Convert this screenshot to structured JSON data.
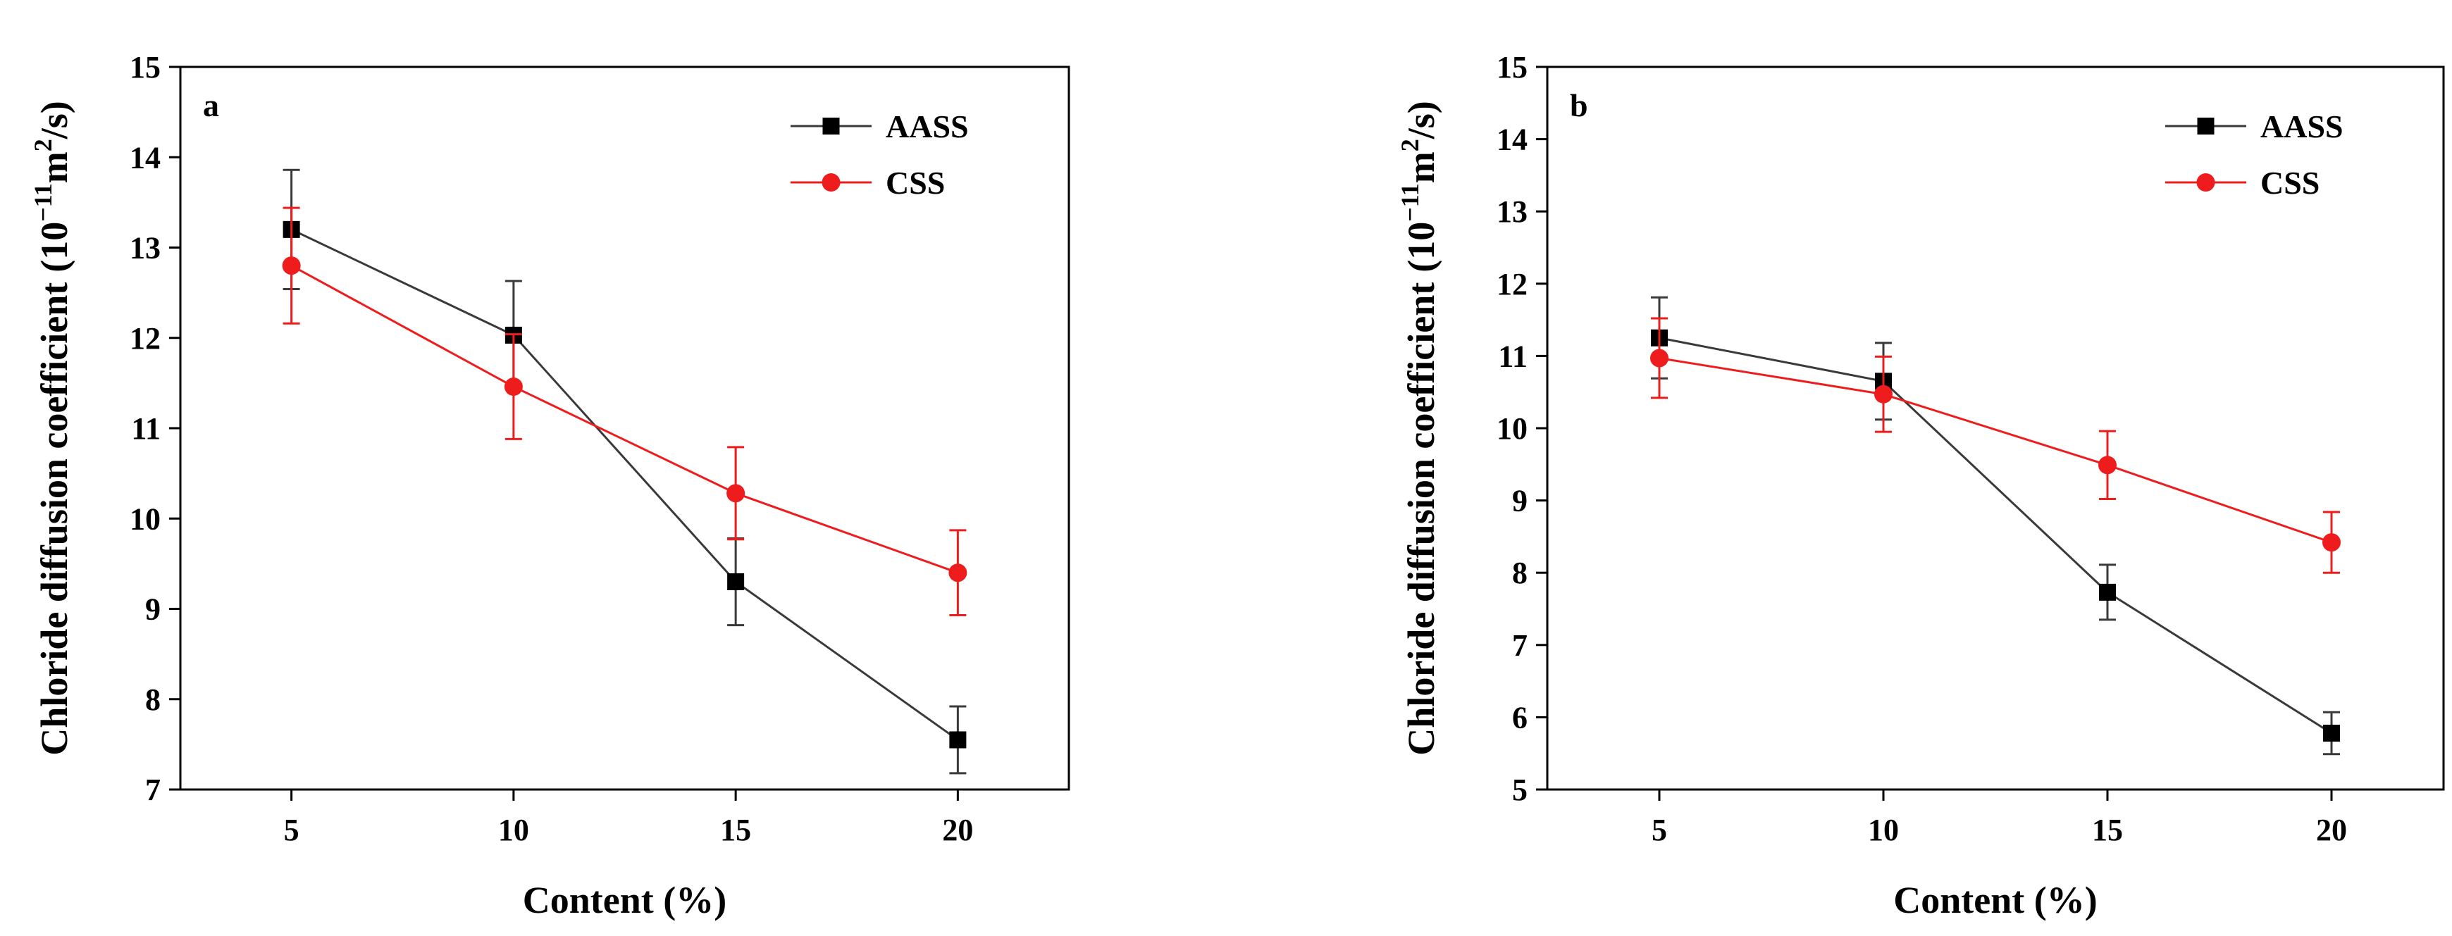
{
  "chart_data": [
    {
      "type": "line",
      "panel_label": "a",
      "xlabel": "Content (%)",
      "ylabel_main": "Chloride diffusion coefficient",
      "ylabel_unit": {
        "open": "(",
        "base": "10",
        "exp": "−11",
        "unit": "m",
        "unit_exp": "2",
        "tail": "/s)"
      },
      "x": [
        5,
        10,
        15,
        20
      ],
      "x_ticks": [
        "5",
        "10",
        "15",
        "20"
      ],
      "xlim": [
        2.5,
        22.5
      ],
      "ylim": [
        7,
        15
      ],
      "y_ticks": [
        "7",
        "8",
        "9",
        "10",
        "11",
        "12",
        "13",
        "14",
        "15"
      ],
      "legend_position": "top-right",
      "series": [
        {
          "name": "AASS",
          "color": "#3a3a3a",
          "marker": "square",
          "values": [
            13.2,
            12.03,
            9.3,
            7.55
          ],
          "errors": [
            0.66,
            0.6,
            0.48,
            0.37
          ]
        },
        {
          "name": "CSS",
          "color": "#ee1c1c",
          "marker": "circle",
          "values": [
            12.8,
            11.46,
            10.28,
            9.4
          ],
          "errors": [
            0.64,
            0.58,
            0.51,
            0.47
          ]
        }
      ]
    },
    {
      "type": "line",
      "panel_label": "b",
      "xlabel": "Content (%)",
      "ylabel_main": "Chloride diffusion coefficient",
      "ylabel_unit": {
        "open": "(",
        "base": "10",
        "exp": "−11",
        "unit": "m",
        "unit_exp": "2",
        "tail": "/s)"
      },
      "x": [
        5,
        10,
        15,
        20
      ],
      "x_ticks": [
        "5",
        "10",
        "15",
        "20"
      ],
      "xlim": [
        2.5,
        22.5
      ],
      "ylim": [
        5,
        15
      ],
      "y_ticks": [
        "5",
        "6",
        "7",
        "8",
        "9",
        "10",
        "11",
        "12",
        "13",
        "14",
        "15"
      ],
      "legend_position": "top-right",
      "series": [
        {
          "name": "AASS",
          "color": "#3a3a3a",
          "marker": "square",
          "values": [
            11.25,
            10.65,
            7.73,
            5.78
          ],
          "errors": [
            0.56,
            0.53,
            0.38,
            0.29
          ]
        },
        {
          "name": "CSS",
          "color": "#ee1c1c",
          "marker": "circle",
          "values": [
            10.97,
            10.47,
            9.49,
            8.42
          ],
          "errors": [
            0.55,
            0.52,
            0.47,
            0.42
          ]
        }
      ]
    }
  ]
}
